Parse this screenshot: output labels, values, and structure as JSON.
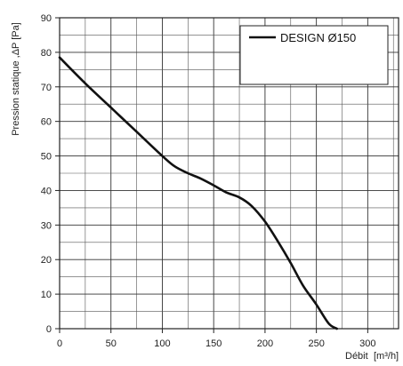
{
  "chart_data": {
    "type": "line",
    "title": "",
    "xlabel": "Débit",
    "xlabel_unit": "[m³/h]",
    "ylabel": "Pression statique ,ΔP [Pa]",
    "xlim": [
      0,
      330
    ],
    "ylim": [
      0,
      90
    ],
    "x_major_ticks": [
      0,
      50,
      100,
      150,
      200,
      250,
      300
    ],
    "x_minor_step": 25,
    "y_major_ticks": [
      0,
      10,
      20,
      30,
      40,
      50,
      60,
      70,
      80,
      90
    ],
    "y_minor_step": 5,
    "grid": true,
    "legend_position": "top-right",
    "series": [
      {
        "name": "DESIGN Ø150",
        "color": "#111111",
        "x": [
          0,
          25,
          50,
          75,
          100,
          112,
          125,
          137,
          150,
          162,
          175,
          187,
          200,
          212,
          225,
          237,
          250,
          262,
          270
        ],
        "y": [
          78.5,
          71,
          64,
          57,
          50,
          47,
          45,
          43.5,
          41.5,
          39.5,
          38,
          35.5,
          31,
          25.5,
          19,
          12.5,
          7,
          1.5,
          0
        ]
      }
    ]
  }
}
